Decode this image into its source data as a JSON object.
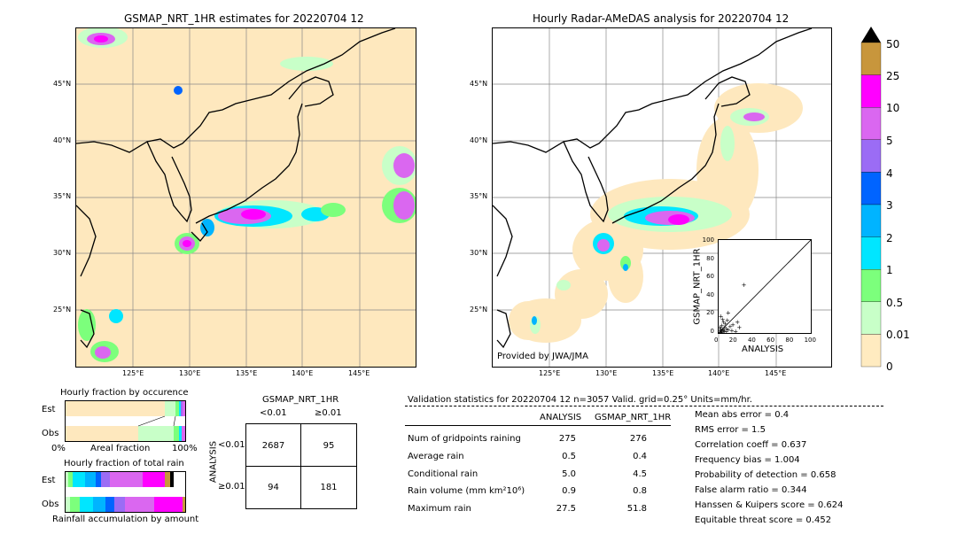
{
  "left_map": {
    "title": "GSMAP_NRT_1HR estimates for 20220704 12",
    "lat_labels": [
      "45°N",
      "40°N",
      "35°N",
      "30°N",
      "25°N"
    ],
    "lon_labels": [
      "125°E",
      "130°E",
      "135°E",
      "140°E",
      "145°E"
    ]
  },
  "right_map": {
    "title": "Hourly Radar-AMeDAS analysis for 20220704 12",
    "lat_labels": [
      "45°N",
      "40°N",
      "35°N",
      "30°N",
      "25°N"
    ],
    "lon_labels": [
      "125°E",
      "130°E",
      "135°E",
      "140°E",
      "145°E"
    ],
    "credit": "Provided by JWA/JMA"
  },
  "colorbar": {
    "labels": [
      "50",
      "25",
      "10",
      "5",
      "4",
      "3",
      "2",
      "1",
      "0.5",
      "0.01",
      "0"
    ],
    "colors": [
      "#c8963c",
      "#ff00ff",
      "#da67f0",
      "#9b6cf5",
      "#0064ff",
      "#00b4ff",
      "#00e6ff",
      "#7cff7c",
      "#c8ffc8",
      "#ffebc0"
    ]
  },
  "scatter": {
    "xlabel": "ANALYSIS",
    "ylabel": "GSMAP_NRT_1HR",
    "ticks": [
      "0",
      "20",
      "40",
      "60",
      "80",
      "100"
    ]
  },
  "fraction_occurrence": {
    "title": "Hourly fraction by occurence",
    "rows": [
      "Est",
      "Obs"
    ],
    "axis_left": "0%",
    "axis_mid": "Areal fraction",
    "axis_right": "100%"
  },
  "fraction_rain": {
    "title": "Hourly fraction of total rain",
    "rows": [
      "Est",
      "Obs"
    ],
    "caption": "Rainfall accumulation by amount"
  },
  "contingency": {
    "title": "GSMAP_NRT_1HR",
    "col_lt": "<0.01",
    "col_ge": "≥0.01",
    "side_label": "ANALYSIS",
    "row_lt": "<0.01",
    "row_ge": "≥0.01",
    "cells": [
      "2687",
      "95",
      "94",
      "181"
    ]
  },
  "validation": {
    "header": "Validation statistics for 20220704 12  n=3057 Valid. grid=0.25° Units=mm/hr.",
    "col_analysis": "ANALYSIS",
    "col_gsmap": "GSMAP_NRT_1HR",
    "rows": [
      {
        "label": "Num of gridpoints raining",
        "a": "275",
        "g": "276"
      },
      {
        "label": "Average rain",
        "a": "0.5",
        "g": "0.4"
      },
      {
        "label": "Conditional rain",
        "a": "5.0",
        "g": "4.5"
      },
      {
        "label": "Rain volume (mm km²10⁶)",
        "a": "0.9",
        "g": "0.8"
      },
      {
        "label": "Maximum rain",
        "a": "27.5",
        "g": "51.8"
      }
    ],
    "scores": [
      "Mean abs error =    0.4",
      "RMS error =    1.5",
      "Correlation coeff =  0.637",
      "Frequency bias =  1.004",
      "Probability of detection =  0.658",
      "False alarm ratio =  0.344",
      "Hanssen & Kuipers score =  0.624",
      "Equitable threat score =  0.452"
    ]
  },
  "chart_data": {
    "type": "scatter",
    "xlabel": "ANALYSIS",
    "ylabel": "GSMAP_NRT_1HR",
    "xlim": [
      0,
      100
    ],
    "ylim": [
      0,
      100
    ],
    "points": [
      [
        1,
        1
      ],
      [
        2,
        1
      ],
      [
        1,
        3
      ],
      [
        3,
        2
      ],
      [
        4,
        4
      ],
      [
        2,
        5
      ],
      [
        5,
        3
      ],
      [
        6,
        6
      ],
      [
        3,
        8
      ],
      [
        8,
        5
      ],
      [
        7,
        10
      ],
      [
        10,
        4
      ],
      [
        5,
        12
      ],
      [
        12,
        7
      ],
      [
        9,
        14
      ],
      [
        14,
        3
      ],
      [
        15,
        9
      ],
      [
        18,
        2
      ],
      [
        2,
        18
      ],
      [
        20,
        12
      ],
      [
        27,
        52
      ],
      [
        10,
        22
      ],
      [
        4,
        15
      ],
      [
        6,
        2
      ],
      [
        1,
        6
      ],
      [
        3,
        1
      ],
      [
        22,
        6
      ],
      [
        8,
        2
      ]
    ]
  }
}
